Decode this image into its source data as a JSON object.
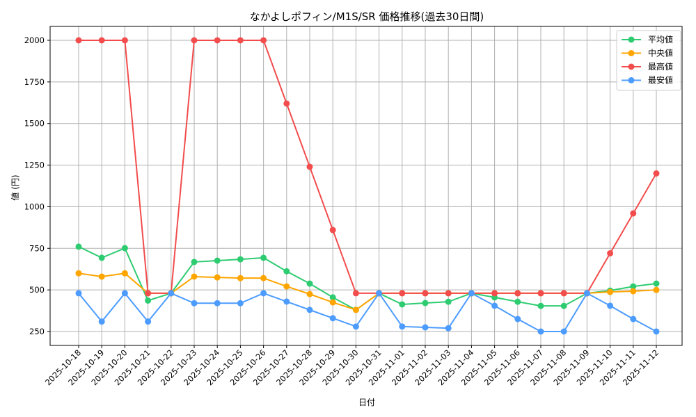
{
  "chart_data": {
    "type": "line",
    "title": "なかよしポフィン/M1S/SR 価格推移(過去30日間)",
    "xlabel": "日付",
    "ylabel": "値 (円)",
    "ylim": [
      160,
      2085
    ],
    "yticks": [
      250,
      500,
      750,
      1000,
      1250,
      1500,
      1750,
      2000
    ],
    "grid": true,
    "legend_position": "upper right",
    "x": [
      "2025-10-18",
      "2025-10-19",
      "2025-10-20",
      "2025-10-21",
      "2025-10-22",
      "2025-10-23",
      "2025-10-24",
      "2025-10-25",
      "2025-10-26",
      "2025-10-27",
      "2025-10-28",
      "2025-10-29",
      "2025-10-30",
      "2025-10-31",
      "2025-11-01",
      "2025-11-02",
      "2025-11-03",
      "2025-11-04",
      "2025-11-05",
      "2025-11-06",
      "2025-11-07",
      "2025-11-08",
      "2025-11-09",
      "2025-11-10",
      "2025-11-11",
      "2025-11-12"
    ],
    "series": [
      {
        "name": "平均値",
        "color": "#2ecc71",
        "values": [
          760,
          693,
          751,
          436,
          480,
          668,
          676,
          684,
          693,
          612,
          538,
          455,
          380,
          480,
          413,
          421,
          429,
          480,
          455,
          429,
          404,
          404,
          480,
          496,
          521,
          538
        ]
      },
      {
        "name": "中央値",
        "color": "#ffa500",
        "values": [
          600,
          580,
          600,
          480,
          480,
          580,
          575,
          571,
          571,
          521,
          475,
          425,
          380,
          480,
          480,
          480,
          480,
          480,
          480,
          480,
          480,
          480,
          480,
          488,
          492,
          500
        ]
      },
      {
        "name": "最高値",
        "color": "#f24c4c",
        "values": [
          2000,
          2000,
          2000,
          480,
          480,
          2000,
          2000,
          2000,
          2000,
          1620,
          1240,
          860,
          480,
          480,
          480,
          480,
          480,
          480,
          480,
          480,
          480,
          480,
          480,
          720,
          960,
          1200
        ]
      },
      {
        "name": "最安値",
        "color": "#4c9cff",
        "values": [
          480,
          310,
          480,
          310,
          480,
          420,
          420,
          420,
          480,
          430,
          380,
          330,
          280,
          480,
          280,
          275,
          270,
          480,
          405,
          325,
          250,
          250,
          480,
          405,
          325,
          250
        ]
      }
    ]
  }
}
